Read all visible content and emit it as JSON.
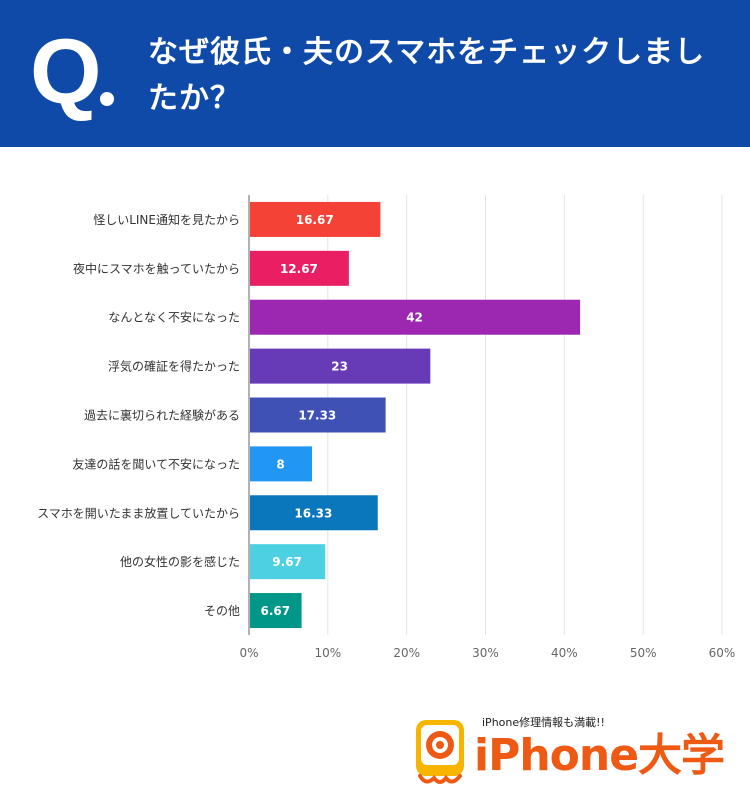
{
  "header": {
    "q_label": "Q",
    "question": "なぜ彼氏・夫のスマホをチェックしましたか？",
    "bg_color": "#0f4aa8"
  },
  "chart_data": {
    "type": "bar",
    "orientation": "horizontal",
    "categories": [
      "怪しいLINE通知を見たから",
      "夜中にスマホを触っていたから",
      "なんとなく不安になった",
      "浮気の確証を得たかった",
      "過去に裏切られた経験がある",
      "友達の話を聞いて不安になった",
      "スマホを開いたまま放置していたから",
      "他の女性の影を感じた",
      "その他"
    ],
    "values": [
      16.67,
      12.67,
      42,
      23,
      17.33,
      8,
      16.33,
      9.67,
      6.67
    ],
    "value_labels": [
      "16.67",
      "12.67",
      "42",
      "23",
      "17.33",
      "8",
      "16.33",
      "9.67",
      "6.67"
    ],
    "colors": [
      "#f44336",
      "#e91e63",
      "#9c27b0",
      "#673ab7",
      "#3f51b5",
      "#2196f3",
      "#0a77bd",
      "#4dd0e1",
      "#009688"
    ],
    "x_ticks": [
      "0%",
      "10%",
      "20%",
      "30%",
      "40%",
      "50%",
      "60%"
    ],
    "xlim": [
      0,
      60
    ],
    "grid": true
  },
  "logo": {
    "tagline": "iPhone修理情報も満載!!",
    "brand": "iPhone大学",
    "brand_color": "#ee5a14"
  }
}
